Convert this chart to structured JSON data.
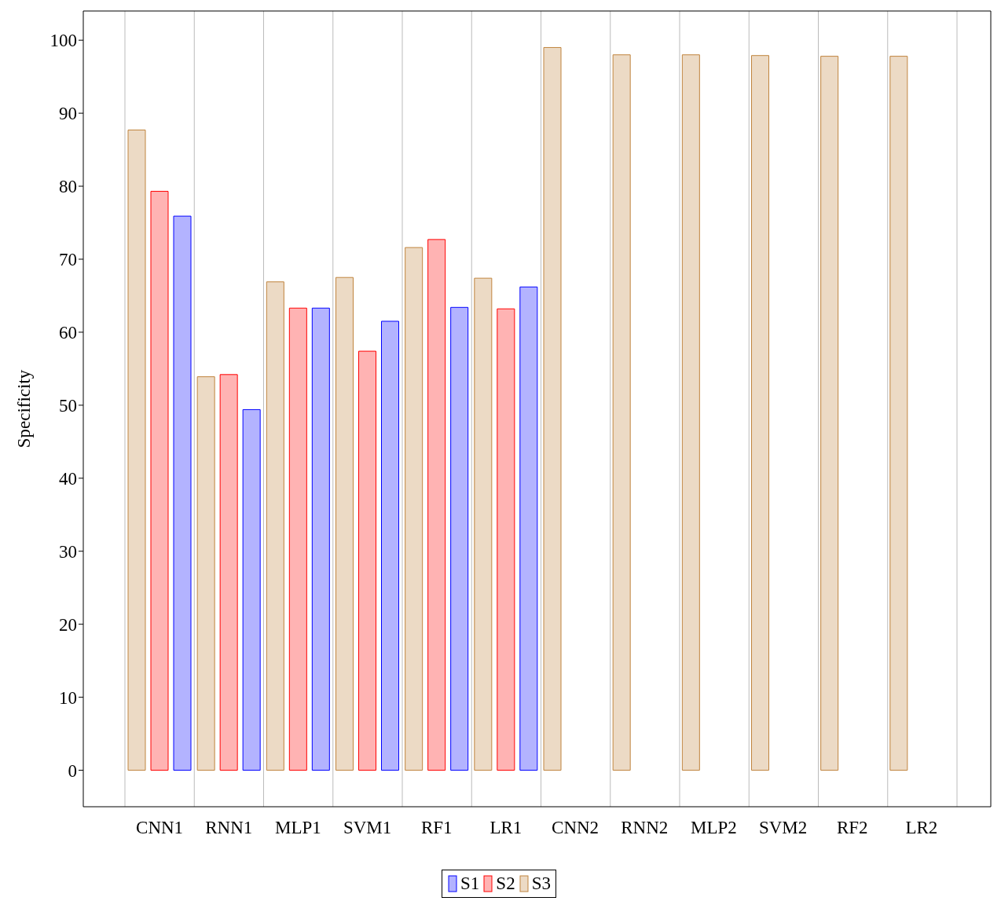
{
  "chart_data": {
    "type": "bar",
    "ylabel": "Specificity",
    "categories": [
      "CNN1",
      "RNN1",
      "MLP1",
      "SVM1",
      "RF1",
      "LR1",
      "CNN2",
      "RNN2",
      "MLP2",
      "SVM2",
      "RF2",
      "LR2"
    ],
    "series": [
      {
        "name": "S1",
        "color": "#b3b3ff",
        "values": [
          75.9,
          49.4,
          63.3,
          61.5,
          63.4,
          66.2,
          0,
          0,
          0,
          0,
          0,
          0
        ]
      },
      {
        "name": "S2",
        "color": "#ffb3b3",
        "values": [
          79.3,
          54.2,
          63.3,
          57.4,
          72.7,
          63.2,
          0,
          0,
          0,
          0,
          0,
          0
        ]
      },
      {
        "name": "S3",
        "color": "#ecdac5",
        "values": [
          87.7,
          53.9,
          66.9,
          67.5,
          71.6,
          67.4,
          99.0,
          98.0,
          98.0,
          97.9,
          97.8,
          97.8
        ]
      }
    ],
    "ylim": [
      -5,
      104
    ],
    "yticks": [
      0,
      10,
      20,
      30,
      40,
      50,
      60,
      70,
      80,
      90,
      100
    ],
    "grid": "x",
    "legend": "bottom"
  }
}
